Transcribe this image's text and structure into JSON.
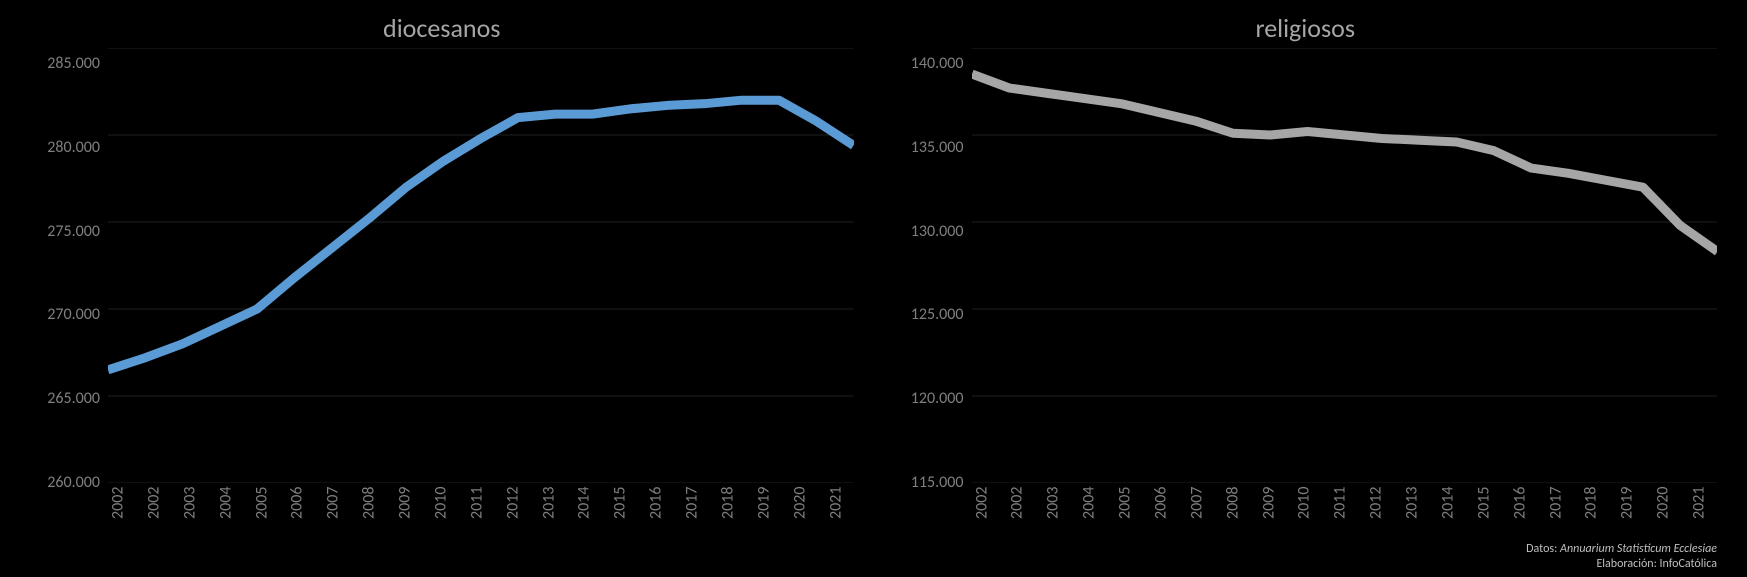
{
  "left_chart": {
    "type": "line",
    "title": "diocesanos",
    "title_fontsize": 26,
    "title_color": "#a6a6a6",
    "categories": [
      "2002",
      "2002",
      "2003",
      "2004",
      "2005",
      "2006",
      "2007",
      "2008",
      "2009",
      "2010",
      "2011",
      "2012",
      "2013",
      "2014",
      "2015",
      "2016",
      "2017",
      "2018",
      "2019",
      "2020",
      "2021"
    ],
    "values": [
      266500,
      267200,
      268000,
      269000,
      270000,
      271800,
      273500,
      275200,
      277000,
      278500,
      279800,
      281000,
      281200,
      281200,
      281500,
      281700,
      281800,
      282000,
      282000,
      280800,
      279400
    ],
    "line_color": "#5b9bd5",
    "line_width": 3,
    "ylim": [
      260000,
      285000
    ],
    "ytick_step": 5000,
    "y_tick_labels": [
      "285.000",
      "280.000",
      "275.000",
      "270.000",
      "265.000",
      "260.000"
    ],
    "grid_color": "#404040",
    "background_color": "#000000",
    "axis_label_color": "#7f7f7f",
    "axis_label_fontsize": 16
  },
  "right_chart": {
    "type": "line",
    "title": "religiosos",
    "title_fontsize": 26,
    "title_color": "#a6a6a6",
    "categories": [
      "2002",
      "2002",
      "2003",
      "2004",
      "2005",
      "2006",
      "2007",
      "2008",
      "2009",
      "2010",
      "2011",
      "2012",
      "2013",
      "2014",
      "2015",
      "2016",
      "2017",
      "2018",
      "2019",
      "2020",
      "2021"
    ],
    "values": [
      138500,
      137700,
      137400,
      137100,
      136800,
      136300,
      135800,
      135100,
      135000,
      135200,
      135000,
      134800,
      134700,
      134600,
      134100,
      133100,
      132800,
      132400,
      132000,
      129800,
      128300
    ],
    "line_color": "#a6a6a6",
    "line_width": 3,
    "ylim": [
      115000,
      140000
    ],
    "ytick_step": 5000,
    "y_tick_labels": [
      "140.000",
      "135.000",
      "130.000",
      "125.000",
      "120.000",
      "115.000"
    ],
    "grid_color": "#404040",
    "background_color": "#000000",
    "axis_label_color": "#7f7f7f",
    "axis_label_fontsize": 16
  },
  "credits": {
    "line1_label": "Datos: ",
    "line1_source": "Annuarium Statisticum Ecclesiae",
    "line2_label": "Elaboración: InfoCatólica"
  }
}
